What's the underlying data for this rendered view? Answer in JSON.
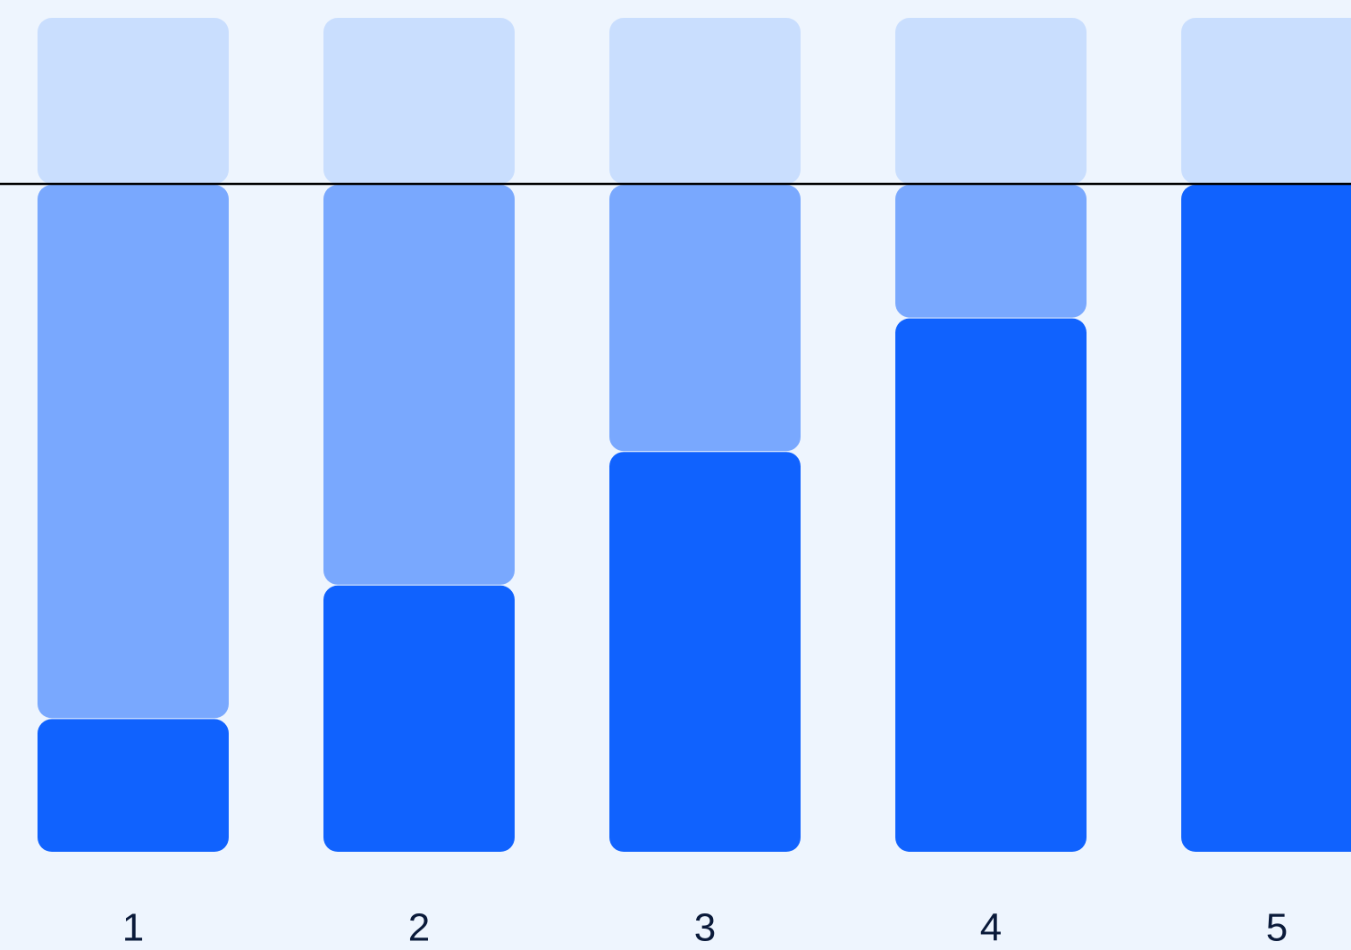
{
  "colors": {
    "background": "#eef5fe",
    "top_segment": "#c9defe",
    "middle_segment": "#79a8fe",
    "bottom_segment": "#1062fe",
    "reference_line": "#000000",
    "tick_label": "#0a1a3a"
  },
  "chart_data": {
    "type": "bar",
    "stacked": true,
    "categories": [
      "1",
      "2",
      "3",
      "4",
      "5"
    ],
    "series": [
      {
        "color": "#1062fe",
        "values": [
          1,
          2,
          3,
          4,
          5
        ]
      },
      {
        "color": "#79a8fe",
        "values": [
          4,
          3,
          2,
          1,
          0
        ]
      },
      {
        "color": "#c9defe",
        "values": [
          1.25,
          1.25,
          1.25,
          1.25,
          1.25
        ]
      }
    ],
    "reference_line": {
      "y": 5
    },
    "ylim": [
      0,
      6.25
    ],
    "grid": false,
    "legend": "none",
    "xlabel": "",
    "ylabel": "",
    "title": ""
  }
}
